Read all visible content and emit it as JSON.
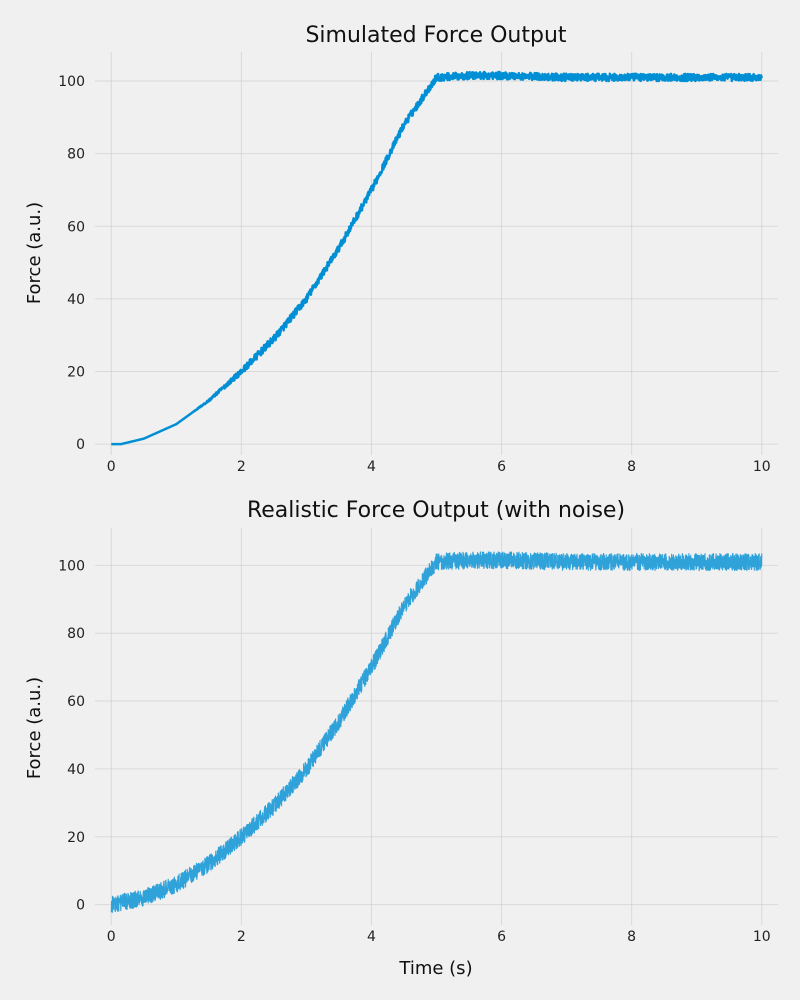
{
  "chart_data": [
    {
      "type": "line",
      "title": "Simulated Force Output",
      "xlabel": "",
      "ylabel": "Force (a.u.)",
      "xlim": [
        -0.25,
        10.25
      ],
      "ylim": [
        -3,
        108
      ],
      "xticks": [
        0,
        2,
        4,
        6,
        8,
        10
      ],
      "yticks": [
        0,
        20,
        40,
        60,
        80,
        100
      ],
      "grid": true,
      "noise_amplitude": 1.0,
      "series": [
        {
          "color": "#008fd5",
          "x": [
            0,
            0.15,
            0.5,
            1.0,
            1.5,
            2.0,
            2.5,
            3.0,
            3.5,
            4.0,
            4.5,
            5.0,
            5.5,
            6.0,
            7.0,
            8.0,
            9.0,
            10.0
          ],
          "y": [
            0,
            0,
            1.5,
            5.5,
            12,
            20,
            29,
            40,
            54,
            70,
            88,
            101,
            101.5,
            101.5,
            101,
            101,
            101,
            101
          ]
        }
      ]
    },
    {
      "type": "line",
      "title": "Realistic Force Output (with noise)",
      "xlabel": "Time (s)",
      "ylabel": "Force (a.u.)",
      "xlim": [
        -0.25,
        10.25
      ],
      "ylim": [
        -6,
        111
      ],
      "xticks": [
        0,
        2,
        4,
        6,
        8,
        10
      ],
      "yticks": [
        0,
        20,
        40,
        60,
        80,
        100
      ],
      "grid": true,
      "noise_amplitude": 2.5,
      "series": [
        {
          "color": "#30a2da",
          "x": [
            0,
            0.5,
            1.0,
            1.5,
            2.0,
            2.5,
            3.0,
            3.5,
            4.0,
            4.5,
            5.0,
            5.5,
            6.0,
            7.0,
            8.0,
            9.0,
            10.0
          ],
          "y": [
            0,
            2,
            6,
            12,
            20,
            29,
            40,
            54,
            70,
            88,
            101,
            101.5,
            101.5,
            101,
            101,
            101,
            101
          ]
        }
      ]
    }
  ]
}
